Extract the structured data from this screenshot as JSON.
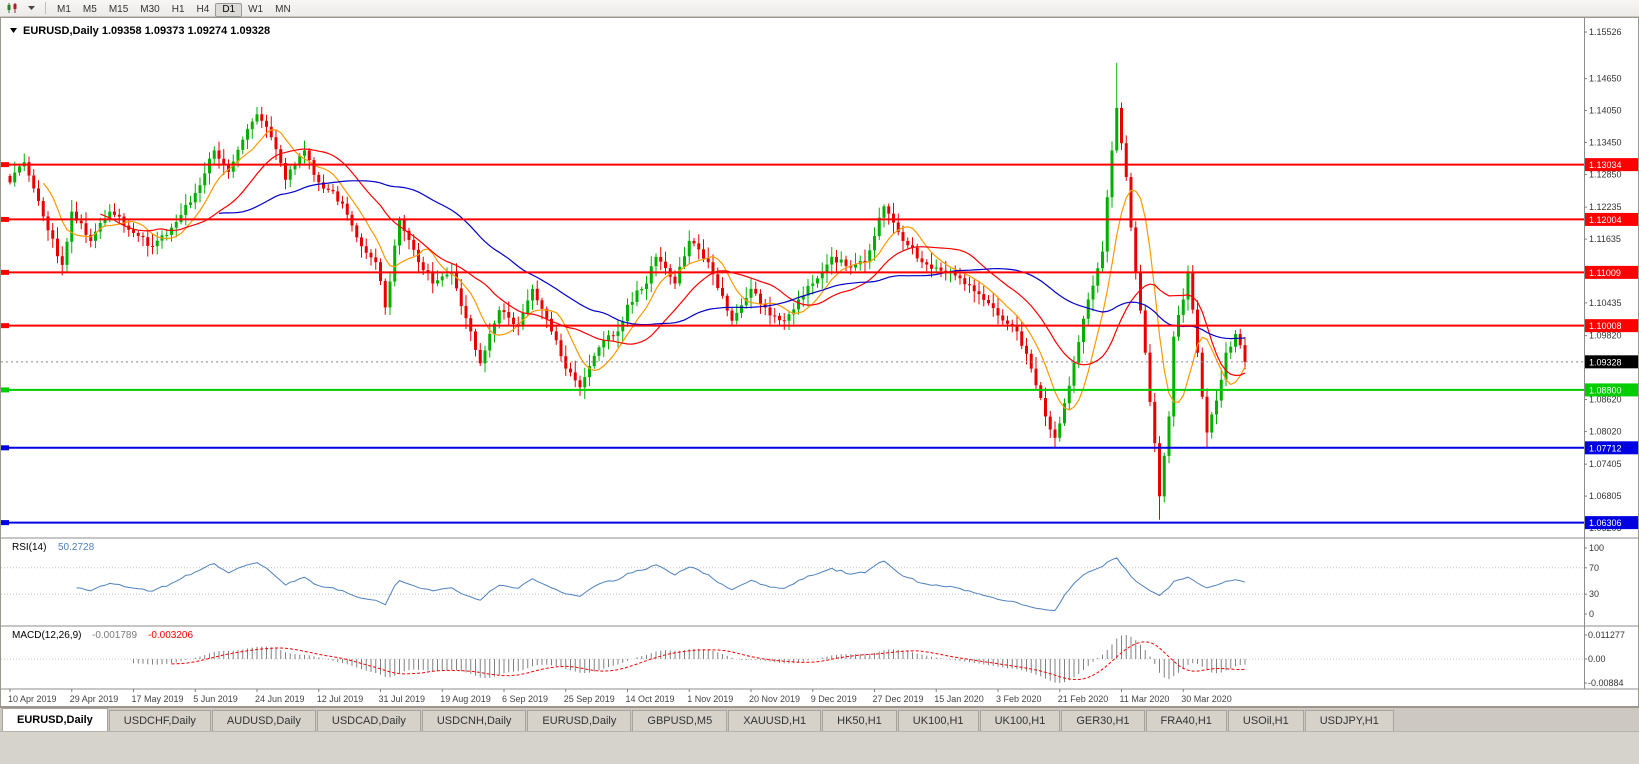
{
  "toolbar": {
    "periods": [
      "M1",
      "M5",
      "M15",
      "M30",
      "H1",
      "H4",
      "D1",
      "W1",
      "MN"
    ],
    "active_period": "D1"
  },
  "chart": {
    "title": "EURUSD,Daily",
    "ohlc": {
      "open": "1.09358",
      "high": "1.09373",
      "low": "1.09274",
      "close": "1.09328"
    },
    "price_axis_labels": [
      "1.15526",
      "1.14650",
      "1.14050",
      "1.13450",
      "1.12850",
      "1.12235",
      "1.11635",
      "1.10435",
      "1.09820",
      "1.08620",
      "1.08020",
      "1.07405",
      "1.06805",
      "1.06205"
    ],
    "hlines": [
      {
        "price": 1.13034,
        "label": "1.13034",
        "color": "#ff0000"
      },
      {
        "price": 1.12004,
        "label": "1.12004",
        "color": "#ff0000"
      },
      {
        "price": 1.11009,
        "label": "1.11009",
        "color": "#ff0000"
      },
      {
        "price": 1.10008,
        "label": "1.10008",
        "color": "#ff0000"
      },
      {
        "price": 1.088,
        "label": "1.08800",
        "color": "#00cc00"
      },
      {
        "price": 1.07712,
        "label": "1.07712",
        "color": "#0000e0"
      },
      {
        "price": 1.06306,
        "label": "1.06306",
        "color": "#0000e0"
      }
    ],
    "current_price": {
      "value": 1.09328,
      "label": "1.09328"
    },
    "date_labels": [
      "10 Apr 2019",
      "29 Apr 2019",
      "17 May 2019",
      "5 Jun 2019",
      "24 Jun 2019",
      "12 Jul 2019",
      "31 Jul 2019",
      "19 Aug 2019",
      "6 Sep 2019",
      "25 Sep 2019",
      "14 Oct 2019",
      "1 Nov 2019",
      "20 Nov 2019",
      "9 Dec 2019",
      "27 Dec 2019",
      "15 Jan 2020",
      "3 Feb 2020",
      "21 Feb 2020",
      "11 Mar 2020",
      "30 Mar 2020"
    ]
  },
  "chart_data": {
    "type": "candlestick",
    "symbol": "EURUSD",
    "timeframe": "Daily",
    "last_ohlc": {
      "open": 1.09358,
      "high": 1.09373,
      "low": 1.09274,
      "close": 1.09328
    },
    "price_scale": {
      "top": 1.15658,
      "bottom": 1.06017
    },
    "n_candles": 261,
    "close_waypoints": [
      [
        0,
        1.127
      ],
      [
        3,
        1.1308
      ],
      [
        8,
        1.118
      ],
      [
        11,
        1.1115
      ],
      [
        13,
        1.1215
      ],
      [
        17,
        1.116
      ],
      [
        21,
        1.1215
      ],
      [
        26,
        1.1175
      ],
      [
        30,
        1.115
      ],
      [
        34,
        1.1185
      ],
      [
        39,
        1.125
      ],
      [
        43,
        1.133
      ],
      [
        46,
        1.129
      ],
      [
        50,
        1.137
      ],
      [
        52,
        1.1398
      ],
      [
        55,
        1.1355
      ],
      [
        58,
        1.1275
      ],
      [
        62,
        1.133
      ],
      [
        65,
        1.127
      ],
      [
        70,
        1.123
      ],
      [
        74,
        1.115
      ],
      [
        77,
        1.112
      ],
      [
        79,
        1.1035
      ],
      [
        82,
        1.12
      ],
      [
        86,
        1.112
      ],
      [
        89,
        1.108
      ],
      [
        93,
        1.11
      ],
      [
        97,
        1.099
      ],
      [
        99,
        1.093
      ],
      [
        103,
        1.103
      ],
      [
        107,
        1.1
      ],
      [
        110,
        1.107
      ],
      [
        114,
        1.099
      ],
      [
        117,
        1.092
      ],
      [
        120,
        1.0885
      ],
      [
        124,
        1.096
      ],
      [
        128,
        1.099
      ],
      [
        130,
        1.104
      ],
      [
        134,
        1.108
      ],
      [
        136,
        1.113
      ],
      [
        140,
        1.108
      ],
      [
        143,
        1.116
      ],
      [
        147,
        1.112
      ],
      [
        152,
        1.101
      ],
      [
        156,
        1.107
      ],
      [
        160,
        1.102
      ],
      [
        163,
        1.101
      ],
      [
        166,
        1.105
      ],
      [
        169,
        1.108
      ],
      [
        173,
        1.113
      ],
      [
        177,
        1.111
      ],
      [
        180,
        1.112
      ],
      [
        184,
        1.1225
      ],
      [
        188,
        1.116
      ],
      [
        192,
        1.112
      ],
      [
        195,
        1.111
      ],
      [
        200,
        1.109
      ],
      [
        204,
        1.106
      ],
      [
        208,
        1.102
      ],
      [
        212,
        1.099
      ],
      [
        215,
        1.092
      ],
      [
        218,
        1.083
      ],
      [
        220,
        1.079
      ],
      [
        222,
        1.0855
      ],
      [
        225,
        1.097
      ],
      [
        227,
        1.105
      ],
      [
        230,
        1.114
      ],
      [
        232,
        1.133
      ],
      [
        233,
        1.141
      ],
      [
        235,
        1.128
      ],
      [
        237,
        1.11
      ],
      [
        239,
        1.095
      ],
      [
        241,
        1.078
      ],
      [
        242,
        1.068
      ],
      [
        244,
        1.083
      ],
      [
        245,
        1.098
      ],
      [
        247,
        1.105
      ],
      [
        248,
        1.11
      ],
      [
        250,
        1.095
      ],
      [
        252,
        1.08
      ],
      [
        254,
        1.086
      ],
      [
        256,
        1.095
      ],
      [
        258,
        1.0985
      ],
      [
        260,
        1.09328
      ]
    ],
    "wick_overrides": {
      "3": {
        "high": 1.1324
      },
      "52": {
        "high": 1.1412
      },
      "233": {
        "high": 1.1495
      },
      "242": {
        "low": 1.0636
      },
      "252": {
        "low": 1.077
      }
    },
    "moving_averages": [
      {
        "period": 8,
        "color": "#ff9900"
      },
      {
        "period": 20,
        "color": "#ff0000"
      },
      {
        "period": 45,
        "color": "#0000cc"
      }
    ]
  },
  "rsi": {
    "label": "RSI(14)",
    "value": "50.2728",
    "period": 14,
    "axis_labels": [
      "100",
      "70",
      "30",
      "0"
    ],
    "levels": [
      70,
      30
    ],
    "line_color": "#4f81bd"
  },
  "macd": {
    "label": "MACD(12,26,9)",
    "main_value": "-0.001789",
    "signal_value": "-0.003206",
    "params": {
      "fast": 12,
      "slow": 26,
      "signal": 9
    },
    "axis_labels": [
      "0.011277",
      "0.00",
      "-0.00884"
    ],
    "hist_color": "#808080",
    "signal_color": "#ff0000"
  },
  "colors": {
    "up": "#00b000",
    "down": "#e80000",
    "current_line": "#888888",
    "axis_text": "#333333",
    "date_text": "#444444"
  },
  "tabs": [
    {
      "label": "EURUSD,Daily",
      "active": true
    },
    {
      "label": "USDCHF,Daily",
      "active": false
    },
    {
      "label": "AUDUSD,Daily",
      "active": false
    },
    {
      "label": "USDCAD,Daily",
      "active": false
    },
    {
      "label": "USDCNH,Daily",
      "active": false
    },
    {
      "label": "EURUSD,Daily",
      "active": false
    },
    {
      "label": "GBPUSD,M5",
      "active": false
    },
    {
      "label": "XAUUSD,H1",
      "active": false
    },
    {
      "label": "HK50,H1",
      "active": false
    },
    {
      "label": "UK100,H1",
      "active": false
    },
    {
      "label": "UK100,H1",
      "active": false
    },
    {
      "label": "GER30,H1",
      "active": false
    },
    {
      "label": "FRA40,H1",
      "active": false
    },
    {
      "label": "USOil,H1",
      "active": false
    },
    {
      "label": "USDJPY,H1",
      "active": false
    }
  ]
}
